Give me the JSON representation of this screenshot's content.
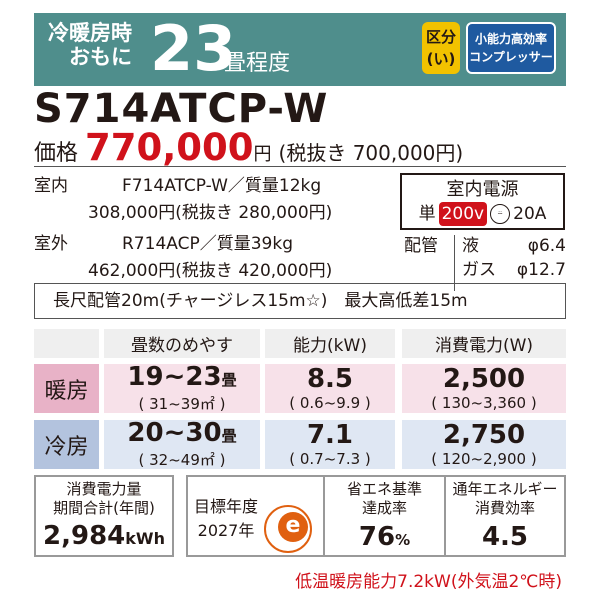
{
  "header": {
    "line1": "冷暖房時",
    "line2": "おもに",
    "size": "23",
    "unit": "畳程度",
    "class_label": "区分",
    "class_value": "(い)",
    "compressor_line1": "小能力高効率",
    "compressor_line2": "コンプレッサー",
    "bg_color": "#4f8e8c"
  },
  "model": "S714ATCP-W",
  "price": {
    "label": "価格",
    "value": "770,000",
    "yen": "円",
    "tax_excluded": "(税抜き 700,000円)",
    "color": "#d0121b"
  },
  "indoor": {
    "label": "室内",
    "model": "F714ATCP-W／質量12kg",
    "price": "308,000円(税抜き 280,000円)"
  },
  "outdoor": {
    "label": "室外",
    "model": "R714ACP／質量39kg",
    "price": "462,000円(税抜き 420,000円)"
  },
  "power": {
    "title": "室内電源",
    "phase": "単",
    "voltage": "200v",
    "plug": "⍨",
    "amp": "20A"
  },
  "piping": {
    "label": "配管",
    "liquid_label": "液",
    "liquid": "φ6.4",
    "gas_label": "ガス",
    "gas": "φ12.7"
  },
  "long_pipe": "長尺配管20m(チャージレス15m☆)　最大高低差15m",
  "table": {
    "headers": [
      "畳数のめやす",
      "能力(kW)",
      "消費電力(W)"
    ],
    "rows": [
      {
        "label": "暖房",
        "tatami": "19~23",
        "tatami_unit": "畳",
        "area": "( 31~39㎡ )",
        "capacity": "8.5",
        "capacity_range": "( 0.6~9.9 )",
        "power": "2,500",
        "power_range": "( 130~3,360 )"
      },
      {
        "label": "冷房",
        "tatami": "20~30",
        "tatami_unit": "畳",
        "area": "( 32~49㎡ )",
        "capacity": "7.1",
        "capacity_range": "( 0.7~7.3 )",
        "power": "2,750",
        "power_range": "( 120~2,900 )"
      }
    ]
  },
  "annual": {
    "line1": "消費電力量",
    "line2": "期間合計(年間)",
    "value": "2,984",
    "unit": "kWh"
  },
  "target": {
    "line1": "目標年度",
    "line2": "2027年",
    "mark": "e"
  },
  "achievement": {
    "line1": "省エネ基準",
    "line2": "達成率",
    "value": "76",
    "unit": "%"
  },
  "apf": {
    "line1": "通年エネルギー",
    "line2": "消費効率",
    "value": "4.5"
  },
  "footnote": "低温暖房能力7.2kW(外気温2℃時)"
}
